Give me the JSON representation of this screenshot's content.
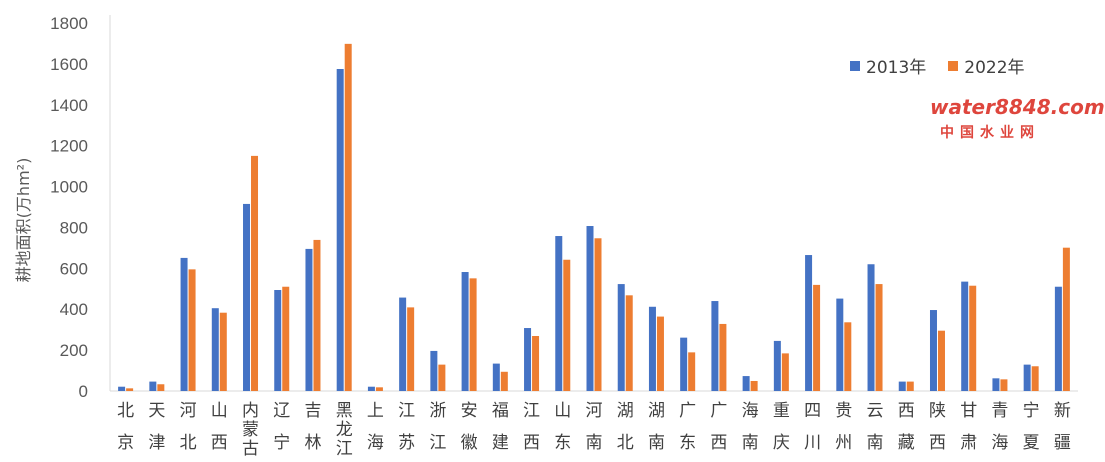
{
  "chart_data": {
    "type": "bar",
    "title": "",
    "xlabel": "",
    "ylabel": "耕地面积(万hm²)",
    "ylim": [
      0,
      1800
    ],
    "yticks": [
      0,
      200,
      400,
      600,
      800,
      1000,
      1200,
      1400,
      1600,
      1800
    ],
    "grid": false,
    "legend_position": "top-right",
    "categories": [
      "北京",
      "天津",
      "河北",
      "山西",
      "内蒙古",
      "辽宁",
      "吉林",
      "黑龙江",
      "上海",
      "江苏",
      "浙江",
      "安徽",
      "福建",
      "江西",
      "山东",
      "河南",
      "湖北",
      "湖南",
      "广东",
      "广西",
      "海南",
      "重庆",
      "四川",
      "贵州",
      "云南",
      "西藏",
      "陕西",
      "甘肃",
      "青海",
      "宁夏",
      "新疆"
    ],
    "series": [
      {
        "name": "2013年",
        "color": "#4472C4",
        "values": [
          21,
          46,
          651,
          405,
          915,
          494,
          695,
          1575,
          21,
          457,
          196,
          582,
          134,
          308,
          758,
          807,
          523,
          412,
          261,
          440,
          73,
          245,
          665,
          452,
          620,
          46,
          396,
          535,
          62,
          129,
          510
        ]
      },
      {
        "name": "2022年",
        "color": "#ED7D31",
        "values": [
          13,
          33,
          595,
          383,
          1150,
          510,
          739,
          1698,
          18,
          409,
          129,
          551,
          94,
          269,
          642,
          747,
          468,
          364,
          189,
          328,
          49,
          184,
          519,
          336,
          523,
          46,
          295,
          515,
          57,
          121,
          701
        ]
      }
    ]
  },
  "watermark": {
    "line1": "water8848.com",
    "line2": "中国水业网"
  }
}
